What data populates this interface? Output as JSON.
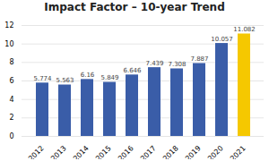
{
  "chart_data": {
    "type": "bar",
    "title": "Impact Factor – 10-year Trend",
    "categories": [
      "2012",
      "2013",
      "2014",
      "2015",
      "2016",
      "2017",
      "2018",
      "2019",
      "2020",
      "2021"
    ],
    "values": [
      5.774,
      5.563,
      6.16,
      5.849,
      6.646,
      7.439,
      7.308,
      7.887,
      10.057,
      11.082
    ],
    "colors": [
      "#3a5da8",
      "#3a5da8",
      "#3a5da8",
      "#3a5da8",
      "#3a5da8",
      "#3a5da8",
      "#3a5da8",
      "#3a5da8",
      "#3a5da8",
      "#f5c800"
    ],
    "ylim": [
      0,
      12
    ],
    "yticks": [
      0,
      2,
      4,
      6,
      8,
      10,
      12
    ],
    "grid": true,
    "data_labels": true
  }
}
